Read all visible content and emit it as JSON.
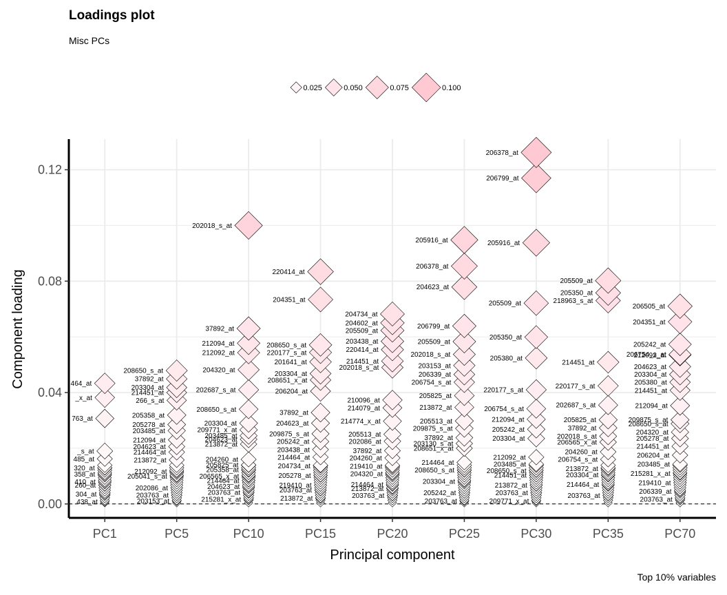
{
  "title": "Loadings plot",
  "subtitle": "Misc PCs",
  "caption": "Top 10% variables",
  "colors": {
    "fill_low": "#ffffff",
    "fill_high": "#ffc9d3",
    "stroke": "#000000",
    "grid": "#ebebeb"
  },
  "chart_data": {
    "type": "scatter",
    "xlabel": "Principal component",
    "ylabel": "Component loading",
    "ylim": [
      -0.005,
      0.131
    ],
    "yticks": [
      0.0,
      0.04,
      0.08,
      0.12
    ],
    "ytick_labels": [
      "0.00",
      "0.04",
      "0.08",
      "0.12"
    ],
    "categories": [
      "PC1",
      "PC5",
      "PC10",
      "PC15",
      "PC20",
      "PC25",
      "PC30",
      "PC35",
      "PC70"
    ],
    "grid": true,
    "reference_line": 0,
    "legend": {
      "position": "top",
      "sizes": [
        0.025,
        0.05,
        0.075,
        0.1
      ],
      "labels": [
        "0.025",
        "0.050",
        "0.075",
        "0.100"
      ]
    },
    "labeled_points": [
      {
        "pc": "PC1",
        "y": 0.0433,
        "label": "464_at"
      },
      {
        "pc": "PC1",
        "y": 0.0382,
        "label": "_x_at"
      },
      {
        "pc": "PC1",
        "y": 0.0307,
        "label": "763_at"
      },
      {
        "pc": "PC1",
        "y": 0.019,
        "label": "_s_at"
      },
      {
        "pc": "PC1",
        "y": 0.0162,
        "label": "485_at"
      },
      {
        "pc": "PC1",
        "y": 0.0129,
        "label": "320_at"
      },
      {
        "pc": "PC1",
        "y": 0.0107,
        "label": "358_at"
      },
      {
        "pc": "PC1",
        "y": 0.008,
        "label": "410_at"
      },
      {
        "pc": "PC1",
        "y": 0.0068,
        "label": "260_at"
      },
      {
        "pc": "PC1",
        "y": 0.0035,
        "label": "304_at"
      },
      {
        "pc": "PC1",
        "y": 0.0008,
        "label": "438_at"
      },
      {
        "pc": "PC5",
        "y": 0.0479,
        "label": "208650_s_at"
      },
      {
        "pc": "PC5",
        "y": 0.0449,
        "label": "37892_at"
      },
      {
        "pc": "PC5",
        "y": 0.0418,
        "label": "203304_at"
      },
      {
        "pc": "PC5",
        "y": 0.04,
        "label": "214451_at"
      },
      {
        "pc": "PC5",
        "y": 0.0372,
        "label": "266_s_at"
      },
      {
        "pc": "PC5",
        "y": 0.0319,
        "label": "205358_at"
      },
      {
        "pc": "PC5",
        "y": 0.0285,
        "label": "205278_at"
      },
      {
        "pc": "PC5",
        "y": 0.0263,
        "label": "203485_at"
      },
      {
        "pc": "PC5",
        "y": 0.023,
        "label": "212094_at"
      },
      {
        "pc": "PC5",
        "y": 0.0206,
        "label": "204623_at"
      },
      {
        "pc": "PC5",
        "y": 0.0186,
        "label": "214464_at"
      },
      {
        "pc": "PC5",
        "y": 0.0158,
        "label": "213872_at"
      },
      {
        "pc": "PC5",
        "y": 0.0117,
        "label": "212092_at"
      },
      {
        "pc": "PC5",
        "y": 0.01,
        "label": "205041_s_at"
      },
      {
        "pc": "PC5",
        "y": 0.0058,
        "label": "202086_at"
      },
      {
        "pc": "PC5",
        "y": 0.0031,
        "label": "203763_at"
      },
      {
        "pc": "PC5",
        "y": 0.001,
        "label": "203153_at"
      },
      {
        "pc": "PC10",
        "y": 0.1,
        "label": "202018_s_at"
      },
      {
        "pc": "PC10",
        "y": 0.063,
        "label": "37892_at"
      },
      {
        "pc": "PC10",
        "y": 0.0577,
        "label": "212094_at"
      },
      {
        "pc": "PC10",
        "y": 0.0543,
        "label": "212092_at"
      },
      {
        "pc": "PC10",
        "y": 0.0482,
        "label": "204320_at"
      },
      {
        "pc": "PC10",
        "y": 0.041,
        "label": "202687_s_at"
      },
      {
        "pc": "PC10",
        "y": 0.034,
        "label": "208650_s_at"
      },
      {
        "pc": "PC10",
        "y": 0.029,
        "label": "203304_at"
      },
      {
        "pc": "PC10",
        "y": 0.0266,
        "label": "209771_x_at"
      },
      {
        "pc": "PC10",
        "y": 0.0245,
        "label": "203485_at"
      },
      {
        "pc": "PC10",
        "y": 0.0232,
        "label": "204623_at"
      },
      {
        "pc": "PC10",
        "y": 0.0215,
        "label": "213872_at"
      },
      {
        "pc": "PC10",
        "y": 0.016,
        "label": "204260_at"
      },
      {
        "pc": "PC10",
        "y": 0.014,
        "label": "205825_at"
      },
      {
        "pc": "PC10",
        "y": 0.0123,
        "label": "205358_at"
      },
      {
        "pc": "PC10",
        "y": 0.01,
        "label": "206565_x_at"
      },
      {
        "pc": "PC10",
        "y": 0.0084,
        "label": "214464_at"
      },
      {
        "pc": "PC10",
        "y": 0.0062,
        "label": "204623_at"
      },
      {
        "pc": "PC10",
        "y": 0.0042,
        "label": "203763_at"
      },
      {
        "pc": "PC10",
        "y": 0.0017,
        "label": "215281_x_at"
      },
      {
        "pc": "PC15",
        "y": 0.0834,
        "label": "220414_at"
      },
      {
        "pc": "PC15",
        "y": 0.0734,
        "label": "204351_at"
      },
      {
        "pc": "PC15",
        "y": 0.0571,
        "label": "208650_s_at"
      },
      {
        "pc": "PC15",
        "y": 0.0544,
        "label": "220177_s_at"
      },
      {
        "pc": "PC15",
        "y": 0.051,
        "label": "201641_at"
      },
      {
        "pc": "PC15",
        "y": 0.0468,
        "label": "203304_at"
      },
      {
        "pc": "PC15",
        "y": 0.0445,
        "label": "208651_x_at"
      },
      {
        "pc": "PC15",
        "y": 0.0405,
        "label": "206204_at"
      },
      {
        "pc": "PC15",
        "y": 0.0328,
        "label": "37892_at"
      },
      {
        "pc": "PC15",
        "y": 0.029,
        "label": "204623_at"
      },
      {
        "pc": "PC15",
        "y": 0.0252,
        "label": "209875_s_at"
      },
      {
        "pc": "PC15",
        "y": 0.0224,
        "label": "205242_at"
      },
      {
        "pc": "PC15",
        "y": 0.0195,
        "label": "203438_at"
      },
      {
        "pc": "PC15",
        "y": 0.0168,
        "label": "214464_at"
      },
      {
        "pc": "PC15",
        "y": 0.0137,
        "label": "204734_at"
      },
      {
        "pc": "PC15",
        "y": 0.0102,
        "label": "205278_at"
      },
      {
        "pc": "PC15",
        "y": 0.0067,
        "label": "219410_at"
      },
      {
        "pc": "PC15",
        "y": 0.005,
        "label": "203763_at"
      },
      {
        "pc": "PC15",
        "y": 0.002,
        "label": "213872_at"
      },
      {
        "pc": "PC20",
        "y": 0.0682,
        "label": "204734_at"
      },
      {
        "pc": "PC20",
        "y": 0.065,
        "label": "204602_at"
      },
      {
        "pc": "PC20",
        "y": 0.0623,
        "label": "205509_at"
      },
      {
        "pc": "PC20",
        "y": 0.0584,
        "label": "203438_at"
      },
      {
        "pc": "PC20",
        "y": 0.0554,
        "label": "220414_at"
      },
      {
        "pc": "PC20",
        "y": 0.0513,
        "label": "214451_at"
      },
      {
        "pc": "PC20",
        "y": 0.049,
        "label": "202018_s_at"
      },
      {
        "pc": "PC20",
        "y": 0.0373,
        "label": "210096_at"
      },
      {
        "pc": "PC20",
        "y": 0.0345,
        "label": "214079_at"
      },
      {
        "pc": "PC20",
        "y": 0.0297,
        "label": "214774_x_at"
      },
      {
        "pc": "PC20",
        "y": 0.025,
        "label": "205513_at"
      },
      {
        "pc": "PC20",
        "y": 0.0225,
        "label": "202086_at"
      },
      {
        "pc": "PC20",
        "y": 0.0191,
        "label": "37892_at"
      },
      {
        "pc": "PC20",
        "y": 0.0165,
        "label": "204260_at"
      },
      {
        "pc": "PC20",
        "y": 0.0135,
        "label": "219410_at"
      },
      {
        "pc": "PC20",
        "y": 0.0108,
        "label": "204320_at"
      },
      {
        "pc": "PC20",
        "y": 0.007,
        "label": "214464_at"
      },
      {
        "pc": "PC20",
        "y": 0.0055,
        "label": "213872_at"
      },
      {
        "pc": "PC20",
        "y": 0.003,
        "label": "203763_at"
      },
      {
        "pc": "PC25",
        "y": 0.0948,
        "label": "205916_at"
      },
      {
        "pc": "PC25",
        "y": 0.0854,
        "label": "206378_at"
      },
      {
        "pc": "PC25",
        "y": 0.0779,
        "label": "204623_at"
      },
      {
        "pc": "PC25",
        "y": 0.0639,
        "label": "206799_at"
      },
      {
        "pc": "PC25",
        "y": 0.0583,
        "label": "205509_at"
      },
      {
        "pc": "PC25",
        "y": 0.0537,
        "label": "202018_s_at"
      },
      {
        "pc": "PC25",
        "y": 0.0497,
        "label": "203153_at"
      },
      {
        "pc": "PC25",
        "y": 0.0465,
        "label": "206339_at"
      },
      {
        "pc": "PC25",
        "y": 0.0437,
        "label": "206754_s_at"
      },
      {
        "pc": "PC25",
        "y": 0.0389,
        "label": "205825_at"
      },
      {
        "pc": "PC25",
        "y": 0.0347,
        "label": "213872_at"
      },
      {
        "pc": "PC25",
        "y": 0.0298,
        "label": "205513_at"
      },
      {
        "pc": "PC25",
        "y": 0.0271,
        "label": "209875_s_at"
      },
      {
        "pc": "PC25",
        "y": 0.0238,
        "label": "37892_at"
      },
      {
        "pc": "PC25",
        "y": 0.0217,
        "label": "203130_s_at"
      },
      {
        "pc": "PC25",
        "y": 0.02,
        "label": "208651_x_at"
      },
      {
        "pc": "PC25",
        "y": 0.0149,
        "label": "214464_at"
      },
      {
        "pc": "PC25",
        "y": 0.0122,
        "label": "208650_s_at"
      },
      {
        "pc": "PC25",
        "y": 0.0081,
        "label": "203304_at"
      },
      {
        "pc": "PC25",
        "y": 0.004,
        "label": "205242_at"
      },
      {
        "pc": "PC25",
        "y": 0.001,
        "label": "203763_at"
      },
      {
        "pc": "PC30",
        "y": 0.1262,
        "label": "206378_at"
      },
      {
        "pc": "PC30",
        "y": 0.117,
        "label": "206799_at"
      },
      {
        "pc": "PC30",
        "y": 0.0938,
        "label": "205916_at"
      },
      {
        "pc": "PC30",
        "y": 0.0721,
        "label": "205509_at"
      },
      {
        "pc": "PC30",
        "y": 0.0599,
        "label": "205350_at"
      },
      {
        "pc": "PC30",
        "y": 0.0524,
        "label": "205380_at"
      },
      {
        "pc": "PC30",
        "y": 0.041,
        "label": "220177_s_at"
      },
      {
        "pc": "PC30",
        "y": 0.0342,
        "label": "206754_s_at"
      },
      {
        "pc": "PC30",
        "y": 0.0304,
        "label": "212094_at"
      },
      {
        "pc": "PC30",
        "y": 0.0268,
        "label": "205242_at"
      },
      {
        "pc": "PC30",
        "y": 0.0235,
        "label": "203304_at"
      },
      {
        "pc": "PC30",
        "y": 0.0168,
        "label": "212092_at"
      },
      {
        "pc": "PC30",
        "y": 0.0143,
        "label": "203485_at"
      },
      {
        "pc": "PC30",
        "y": 0.012,
        "label": "208650_s_at"
      },
      {
        "pc": "PC30",
        "y": 0.0103,
        "label": "214451_at"
      },
      {
        "pc": "PC30",
        "y": 0.0068,
        "label": "213872_at"
      },
      {
        "pc": "PC30",
        "y": 0.004,
        "label": "203763_at"
      },
      {
        "pc": "PC30",
        "y": 0.001,
        "label": "209771_x_at"
      },
      {
        "pc": "PC35",
        "y": 0.0802,
        "label": "205509_at"
      },
      {
        "pc": "PC35",
        "y": 0.0758,
        "label": "205350_at"
      },
      {
        "pc": "PC35",
        "y": 0.073,
        "label": "218963_s_at"
      },
      {
        "pc": "PC35",
        "y": 0.0509,
        "label": "214451_at"
      },
      {
        "pc": "PC35",
        "y": 0.0424,
        "label": "220177_s_at"
      },
      {
        "pc": "PC35",
        "y": 0.0355,
        "label": "202687_s_at"
      },
      {
        "pc": "PC35",
        "y": 0.0302,
        "label": "205825_at"
      },
      {
        "pc": "PC35",
        "y": 0.0273,
        "label": "37892_at"
      },
      {
        "pc": "PC35",
        "y": 0.0243,
        "label": "202018_s_at"
      },
      {
        "pc": "PC35",
        "y": 0.0222,
        "label": "206565_x_at"
      },
      {
        "pc": "PC35",
        "y": 0.0187,
        "label": "204260_at"
      },
      {
        "pc": "PC35",
        "y": 0.016,
        "label": "206754_s_at"
      },
      {
        "pc": "PC35",
        "y": 0.0127,
        "label": "213872_at"
      },
      {
        "pc": "PC35",
        "y": 0.0105,
        "label": "203304_at"
      },
      {
        "pc": "PC35",
        "y": 0.007,
        "label": "214464_at"
      },
      {
        "pc": "PC35",
        "y": 0.003,
        "label": "203763_at"
      },
      {
        "pc": "PC70",
        "y": 0.071,
        "label": "206505_at"
      },
      {
        "pc": "PC70",
        "y": 0.0654,
        "label": "204351_at"
      },
      {
        "pc": "PC70",
        "y": 0.0573,
        "label": "205242_at"
      },
      {
        "pc": "PC70",
        "y": 0.0537,
        "label": "206754_s_at"
      },
      {
        "pc": "PC70",
        "y": 0.0535,
        "label": "212092_at"
      },
      {
        "pc": "PC70",
        "y": 0.0493,
        "label": "204623_at"
      },
      {
        "pc": "PC70",
        "y": 0.0465,
        "label": "203304_at"
      },
      {
        "pc": "PC70",
        "y": 0.0437,
        "label": "205380_at"
      },
      {
        "pc": "PC70",
        "y": 0.0408,
        "label": "214451_at"
      },
      {
        "pc": "PC70",
        "y": 0.0353,
        "label": "212094_at"
      },
      {
        "pc": "PC70",
        "y": 0.0302,
        "label": "209875_s_at"
      },
      {
        "pc": "PC70",
        "y": 0.0288,
        "label": "208650_s_at"
      },
      {
        "pc": "PC70",
        "y": 0.0258,
        "label": "204320_at"
      },
      {
        "pc": "PC70",
        "y": 0.0235,
        "label": "205278_at"
      },
      {
        "pc": "PC70",
        "y": 0.0207,
        "label": "214451_at"
      },
      {
        "pc": "PC70",
        "y": 0.0175,
        "label": "206204_at"
      },
      {
        "pc": "PC70",
        "y": 0.0143,
        "label": "203485_at"
      },
      {
        "pc": "PC70",
        "y": 0.011,
        "label": "215281_x_at"
      },
      {
        "pc": "PC70",
        "y": 0.0076,
        "label": "219410_at"
      },
      {
        "pc": "PC70",
        "y": 0.0045,
        "label": "206339_at"
      },
      {
        "pc": "PC70",
        "y": 0.0017,
        "label": "203763_at"
      }
    ]
  }
}
